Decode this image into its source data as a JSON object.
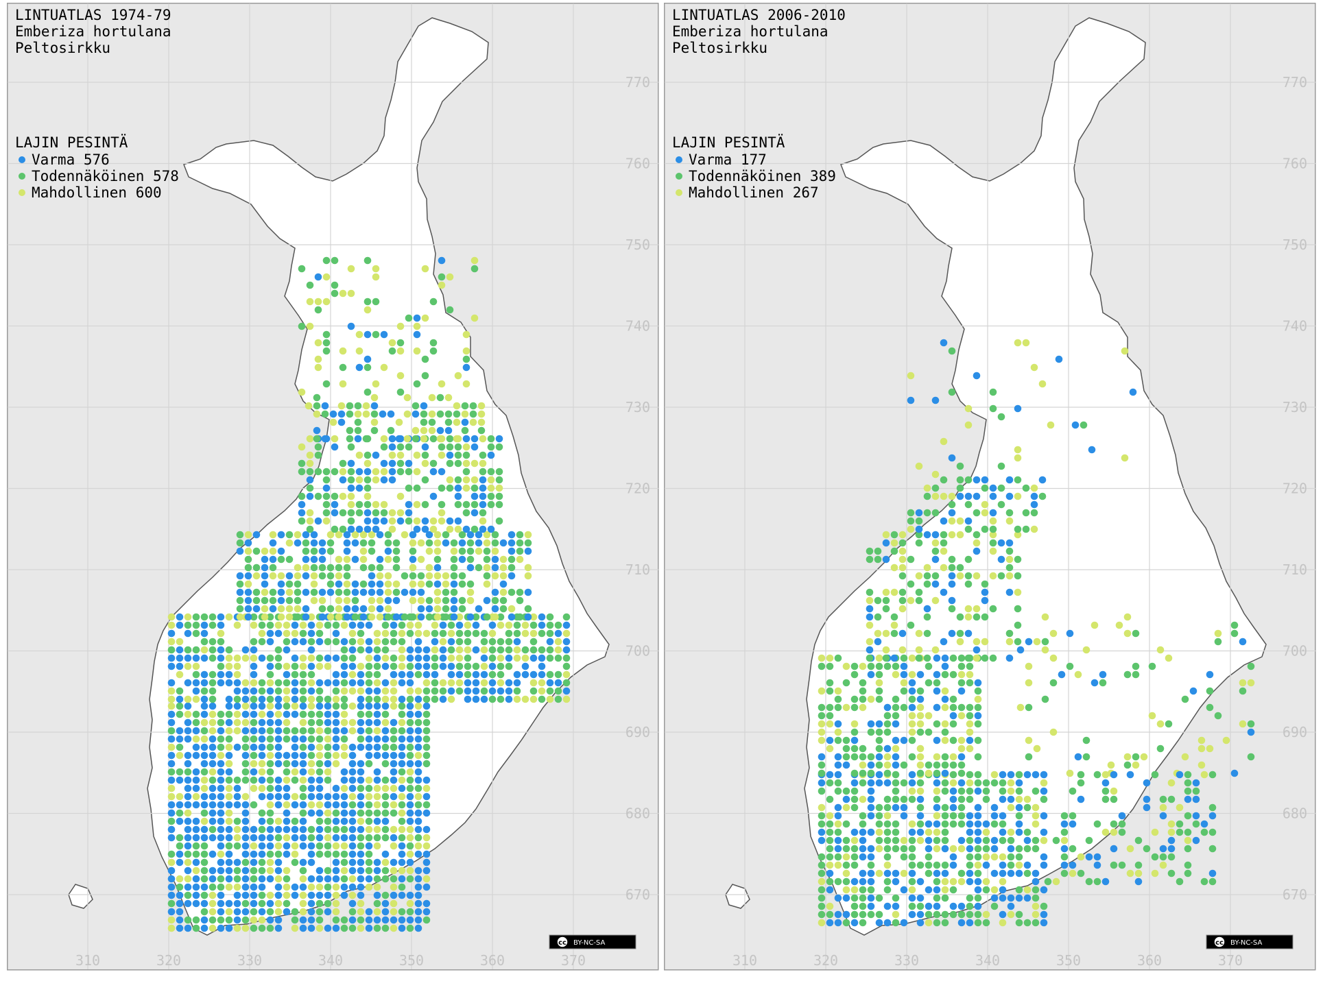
{
  "maps": [
    {
      "title": "LINTUATLAS 1974-79",
      "scientific_name": "Emberiza hortulana",
      "common_name": "Peltosirkku",
      "legend": {
        "heading": "LAJIN PESINTÄ",
        "items": [
          {
            "label": "Varma 576",
            "color": "#2b8ee6"
          },
          {
            "label": "Todennäköinen 578",
            "color": "#5cc46c"
          },
          {
            "label": "Mahdollinen 600",
            "color": "#d4e66c"
          }
        ]
      },
      "license": "BY-NC-SA"
    },
    {
      "title": "LINTUATLAS 2006-2010",
      "scientific_name": "Emberiza hortulana",
      "common_name": "Peltosirkku",
      "legend": {
        "heading": "LAJIN PESINTÄ",
        "items": [
          {
            "label": "Varma 177",
            "color": "#2b8ee6"
          },
          {
            "label": "Todennäköinen 389",
            "color": "#5cc46c"
          },
          {
            "label": "Mahdollinen 267",
            "color": "#d4e66c"
          }
        ]
      },
      "license": "BY-NC-SA"
    }
  ],
  "axes": {
    "x_ticks": [
      "310",
      "320",
      "330",
      "340",
      "350",
      "360",
      "370"
    ],
    "y_ticks": [
      "770",
      "760",
      "750",
      "740",
      "730",
      "720",
      "710",
      "700",
      "690",
      "680",
      "670"
    ]
  },
  "colors": {
    "background": "#e8e8e8",
    "land": "#ffffff",
    "grid": "#d4d4d4"
  },
  "cc_badge": "cc"
}
